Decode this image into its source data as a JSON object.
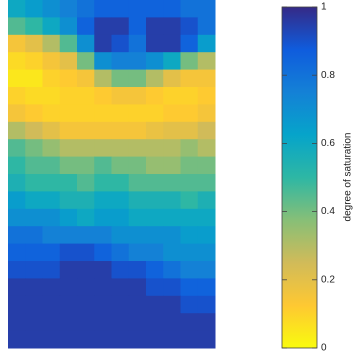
{
  "chart_data": {
    "type": "heatmap",
    "z": [
      [
        0.6,
        0.65,
        0.7,
        0.75,
        0.8,
        0.85,
        0.85,
        0.85,
        0.85,
        0.85,
        0.8,
        0.8
      ],
      [
        0.45,
        0.5,
        0.6,
        0.7,
        0.85,
        0.95,
        0.95,
        0.85,
        0.95,
        0.95,
        0.9,
        0.8
      ],
      [
        0.15,
        0.2,
        0.3,
        0.45,
        0.7,
        0.95,
        0.9,
        0.8,
        0.95,
        0.95,
        0.85,
        0.65
      ],
      [
        0.08,
        0.1,
        0.15,
        0.2,
        0.4,
        0.7,
        0.75,
        0.75,
        0.7,
        0.6,
        0.4,
        0.3
      ],
      [
        0.05,
        0.05,
        0.1,
        0.12,
        0.15,
        0.3,
        0.4,
        0.4,
        0.3,
        0.2,
        0.15,
        0.15
      ],
      [
        0.1,
        0.08,
        0.08,
        0.1,
        0.1,
        0.12,
        0.15,
        0.15,
        0.12,
        0.1,
        0.1,
        0.12
      ],
      [
        0.15,
        0.12,
        0.1,
        0.1,
        0.1,
        0.1,
        0.1,
        0.1,
        0.1,
        0.12,
        0.12,
        0.15
      ],
      [
        0.3,
        0.25,
        0.2,
        0.15,
        0.15,
        0.15,
        0.15,
        0.15,
        0.18,
        0.2,
        0.2,
        0.25
      ],
      [
        0.45,
        0.4,
        0.35,
        0.3,
        0.3,
        0.3,
        0.3,
        0.3,
        0.3,
        0.3,
        0.35,
        0.3
      ],
      [
        0.5,
        0.45,
        0.45,
        0.4,
        0.4,
        0.45,
        0.4,
        0.4,
        0.35,
        0.35,
        0.4,
        0.4
      ],
      [
        0.55,
        0.5,
        0.5,
        0.5,
        0.45,
        0.5,
        0.5,
        0.45,
        0.45,
        0.45,
        0.45,
        0.45
      ],
      [
        0.65,
        0.6,
        0.6,
        0.55,
        0.55,
        0.6,
        0.6,
        0.55,
        0.55,
        0.55,
        0.5,
        0.55
      ],
      [
        0.7,
        0.7,
        0.7,
        0.65,
        0.6,
        0.65,
        0.65,
        0.6,
        0.6,
        0.6,
        0.6,
        0.6
      ],
      [
        0.8,
        0.8,
        0.75,
        0.75,
        0.75,
        0.75,
        0.7,
        0.7,
        0.7,
        0.7,
        0.65,
        0.65
      ],
      [
        0.85,
        0.85,
        0.85,
        0.9,
        0.9,
        0.85,
        0.8,
        0.75,
        0.75,
        0.7,
        0.7,
        0.7
      ],
      [
        0.9,
        0.9,
        0.9,
        0.95,
        0.95,
        0.95,
        0.9,
        0.9,
        0.85,
        0.8,
        0.75,
        0.75
      ],
      [
        0.95,
        0.95,
        0.95,
        0.95,
        0.95,
        0.95,
        0.95,
        0.95,
        0.9,
        0.9,
        0.85,
        0.85
      ],
      [
        0.95,
        0.95,
        0.95,
        0.95,
        0.95,
        0.95,
        0.95,
        0.95,
        0.95,
        0.95,
        0.9,
        0.9
      ],
      [
        0.95,
        0.95,
        0.95,
        0.95,
        0.95,
        0.95,
        0.95,
        0.95,
        0.95,
        0.95,
        0.95,
        0.95
      ],
      [
        0.95,
        0.95,
        0.95,
        0.95,
        0.95,
        0.95,
        0.95,
        0.95,
        0.95,
        0.95,
        0.95,
        0.95
      ]
    ],
    "colors": [
      "#f9fb0e",
      "#fec832",
      "#d1bb59",
      "#87bf77",
      "#2eb7a4",
      "#06a4ca",
      "#1481d6",
      "#0f5cdd",
      "#352a87"
    ],
    "clim": [
      0,
      1
    ],
    "cticks": [
      0,
      0.2,
      0.4,
      0.6,
      0.8,
      1
    ],
    "colorbar_label": "degree of saturation"
  }
}
